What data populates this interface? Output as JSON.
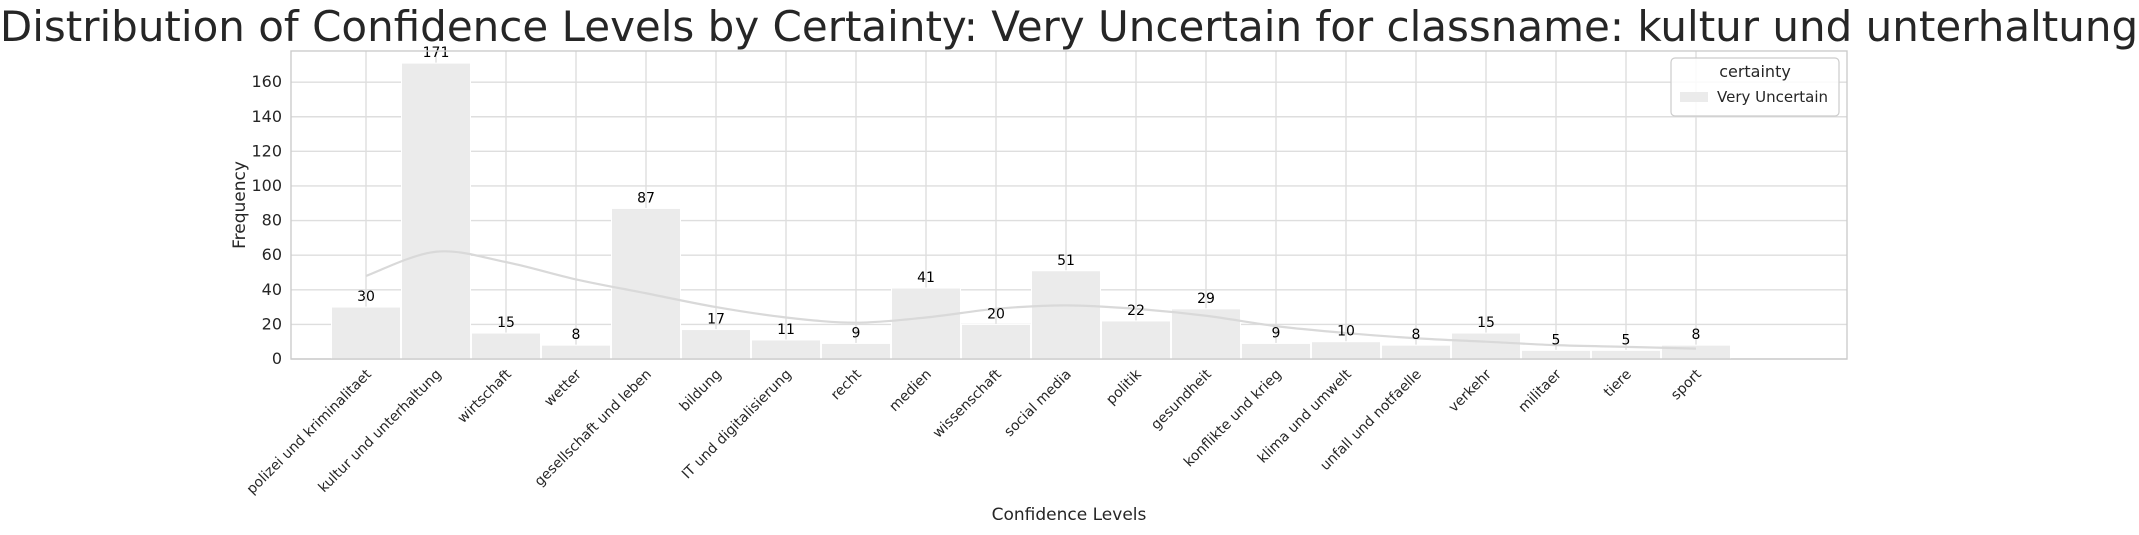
{
  "chart_data": {
    "type": "bar",
    "title": "Distribution of Confidence Levels by Certainty: Very Uncertain for classname: kultur und unterhaltung",
    "xlabel": "Confidence Levels",
    "ylabel": "Frequency",
    "ylim": [
      0,
      178
    ],
    "yticks": [
      0,
      20,
      40,
      60,
      80,
      100,
      120,
      140,
      160
    ],
    "grid": true,
    "legend": {
      "title": "certainty",
      "position": "top-right",
      "entries": [
        "Very Uncertain"
      ]
    },
    "categories": [
      "polizei und kriminalitaet",
      "kultur und unterhaltung",
      "wirtschaft",
      "wetter",
      "gesellschaft und leben",
      "bildung",
      "IT und digitalisierung",
      "recht",
      "medien",
      "wissenschaft",
      "social media",
      "politik",
      "gesundheit",
      "konflikte und krieg",
      "klima und umwelt",
      "unfall und notfaelle",
      "verkehr",
      "militaer",
      "tiere",
      "sport"
    ],
    "series": [
      {
        "name": "Very Uncertain",
        "color": "#ebebeb",
        "kde_color": "#d9d9d9",
        "values": [
          30,
          171,
          15,
          8,
          87,
          17,
          11,
          9,
          41,
          20,
          51,
          22,
          29,
          9,
          10,
          8,
          15,
          5,
          5,
          8
        ],
        "kde": [
          48,
          62,
          56,
          46,
          38,
          30,
          24,
          21,
          24,
          29,
          31,
          29,
          25,
          19,
          15,
          12,
          10,
          8,
          7,
          6
        ]
      }
    ]
  }
}
